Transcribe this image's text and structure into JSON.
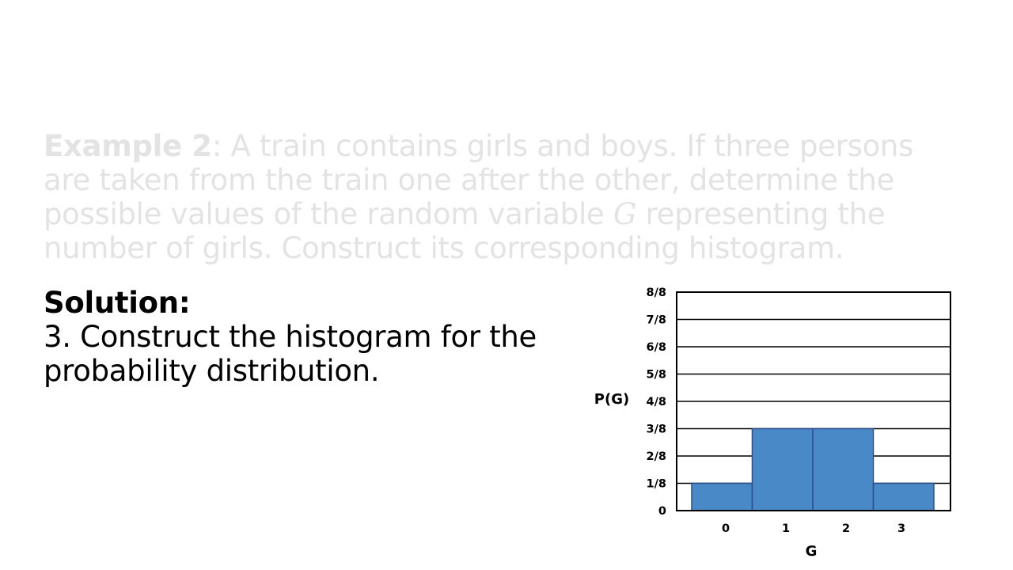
{
  "problem": {
    "label": "Example 2",
    "text_before": ": A train contains girls and boys. If three persons are taken from the train one after the other, determine the possible values of the random variable ",
    "variable": "G",
    "text_after": " representing the number of girls. Construct its corresponding histogram."
  },
  "solution": {
    "heading": "Solution:",
    "step": "3. Construct the histogram for the probability distribution."
  },
  "colors": {
    "bar_fill": "#4a89c8",
    "bar_stroke": "#2a4f8a",
    "faded_text": "#e3e3e3"
  },
  "chart_data": {
    "type": "bar",
    "categories": [
      "0",
      "1",
      "2",
      "3"
    ],
    "values": [
      0.125,
      0.375,
      0.375,
      0.125
    ],
    "xlabel": "G",
    "ylabel": "P(G)",
    "ylim": [
      0,
      1
    ],
    "yticks": [
      0,
      0.125,
      0.25,
      0.375,
      0.5,
      0.625,
      0.75,
      0.875,
      1
    ],
    "ytick_labels": [
      "0",
      "1/8",
      "2/8",
      "3/8",
      "4/8",
      "5/8",
      "6/8",
      "7/8",
      "8/8"
    ],
    "grid": true,
    "legend": "none"
  }
}
